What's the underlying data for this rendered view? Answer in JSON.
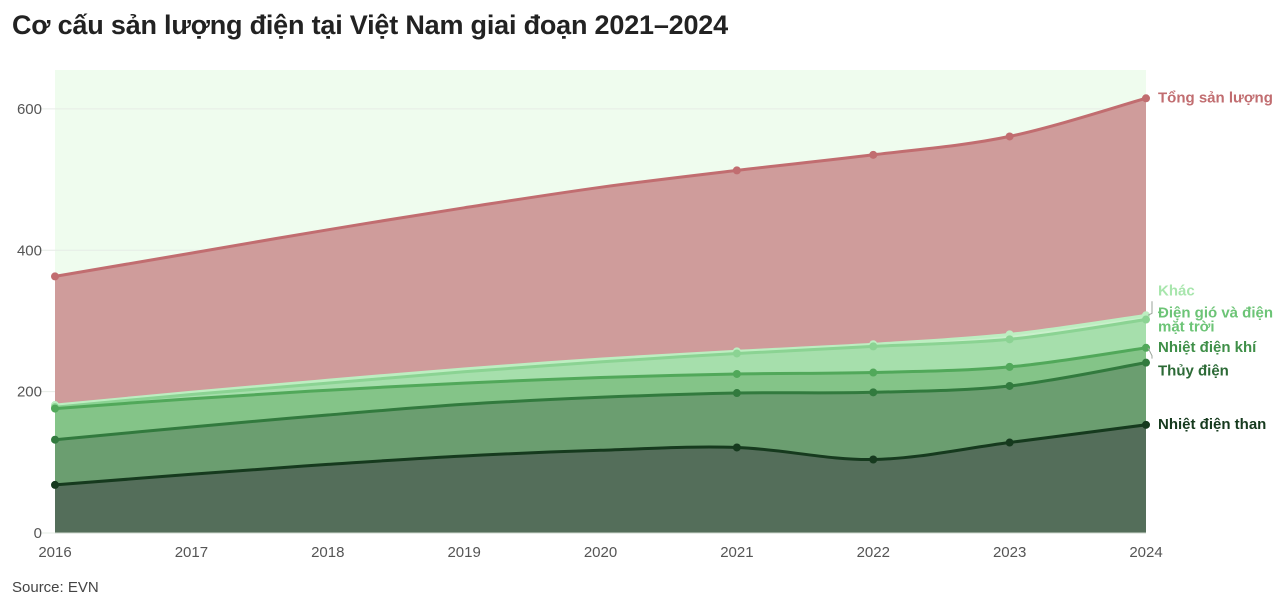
{
  "title": "Cơ cấu sản lượng điện tại Việt Nam giai đoạn 2021–2024",
  "source": "Source: EVN",
  "chart_data": {
    "type": "area",
    "x": [
      2016,
      2017,
      2018,
      2019,
      2020,
      2021,
      2022,
      2023,
      2024
    ],
    "x_tick_labels": [
      "2016",
      "2017",
      "2018",
      "2019",
      "2020",
      "2021",
      "2022",
      "2023",
      "2024"
    ],
    "y_ticks": [
      0,
      200,
      400,
      600
    ],
    "y_tick_labels": [
      "0",
      "200",
      "400",
      "600"
    ],
    "ylim": [
      0,
      655
    ],
    "xlim": [
      2016,
      2024
    ],
    "grid": true,
    "marker_x": [
      2016,
      2021,
      2022,
      2023,
      2024
    ],
    "background_color": "#effcee",
    "series": [
      {
        "name": "Nhiệt điện than",
        "values": [
          68,
          83,
          97,
          109,
          117,
          121,
          104,
          128,
          153
        ],
        "fill": "#546e5a",
        "line": "#163a1e",
        "label_color": "#163a1e"
      },
      {
        "name": "Thủy điện",
        "values": [
          132,
          150,
          167,
          182,
          192,
          198,
          199,
          208,
          241
        ],
        "fill": "#6b9e70",
        "line": "#327a3e",
        "label_color": "#2c6a36"
      },
      {
        "name": "Nhiệt điện khí",
        "values": [
          176,
          190,
          202,
          212,
          220,
          225,
          227,
          235,
          262
        ],
        "fill": "#84c488",
        "line": "#51a85a",
        "label_color": "#3f8f48"
      },
      {
        "name": "Điện gió và điện mặt trời",
        "label_lines": [
          "Điện gió và điện",
          "mặt trời"
        ],
        "values": [
          178,
          196,
          212,
          228,
          242,
          254,
          264,
          274,
          302
        ],
        "fill": "#a6dfac",
        "line": "#8bd393",
        "label_color": "#6cc476"
      },
      {
        "name": "Khác",
        "values": [
          181,
          199,
          216,
          232,
          246,
          257,
          267,
          281,
          308
        ],
        "fill": "#c9f0cb",
        "line": "#bdeec1",
        "label_color": "#a8e6ad"
      },
      {
        "name": "Tổng sản lượng",
        "values": [
          363,
          396,
          429,
          460,
          489,
          513,
          535,
          561,
          615
        ],
        "fill": "#cf9c9b",
        "line": "#c16d70",
        "label_color": "#c16d70"
      }
    ]
  }
}
